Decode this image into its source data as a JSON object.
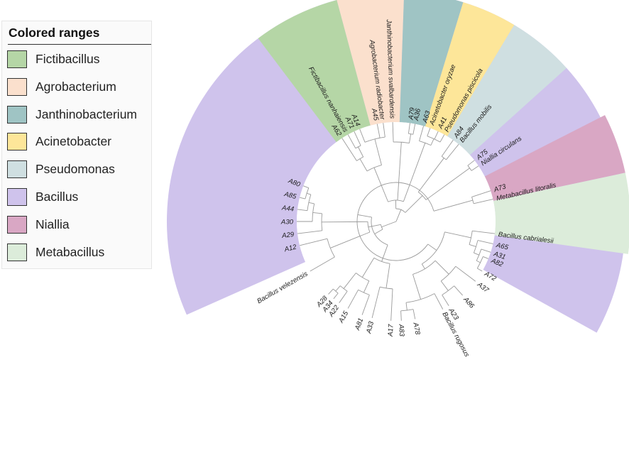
{
  "legend": {
    "title": "Colored ranges",
    "items": [
      {
        "label": "Fictibacillus",
        "color": "#b5d6a6"
      },
      {
        "label": "Agrobacterium",
        "color": "#fbe0cd"
      },
      {
        "label": "Janthinobacterium",
        "color": "#9fc4c4"
      },
      {
        "label": "Acinetobacter",
        "color": "#fde699"
      },
      {
        "label": "Pseudomonas",
        "color": "#cfdfe1"
      },
      {
        "label": "Bacillus",
        "color": "#cfc3ec"
      },
      {
        "label": "Niallia",
        "color": "#d9a7c4"
      },
      {
        "label": "Metabacillus",
        "color": "#dcecda"
      }
    ]
  },
  "tree": {
    "ranges": [
      {
        "genus": "Bacillus",
        "color": "#cfc3ec"
      },
      {
        "genus": "Fictibacillus",
        "color": "#b5d6a6"
      },
      {
        "genus": "Agrobacterium",
        "color": "#fbe0cd"
      },
      {
        "genus": "Janthinobacterium",
        "color": "#9fc4c4"
      },
      {
        "genus": "Acinetobacter",
        "color": "#fde699"
      },
      {
        "genus": "Pseudomonas",
        "color": "#cfdfe1"
      },
      {
        "genus": "Bacillus",
        "color": "#cfc3ec"
      },
      {
        "genus": "Niallia",
        "color": "#d9a7c4"
      },
      {
        "genus": "Metabacillus",
        "color": "#dcecda"
      }
    ],
    "leaves": [
      "A62",
      "Fictibacillus nanhaiensis",
      "A71",
      "A14",
      "A45",
      "Agrobacterium radiobacter",
      "Janthinobacterium svalbardensis",
      "A79",
      "A36",
      "A63",
      "Acinetobacter oryzae",
      "A41",
      "Pseudomonas piscicola",
      "A84",
      "Bacillus mobilis",
      "A75",
      "Niallia circulans",
      "A73",
      "Metabacillus litoralis",
      "Bacillus cabrialesii",
      "A65",
      "A31",
      "A82",
      "A72",
      "A37",
      "A86",
      "A23",
      "Bacillus rugosus",
      "A78",
      "A83",
      "A17",
      "A33",
      "A81",
      "A15",
      "A22",
      "A34",
      "A28",
      "Bacillus velezensis",
      "A12",
      "A29",
      "A30",
      "A44",
      "A85",
      "A80"
    ]
  }
}
